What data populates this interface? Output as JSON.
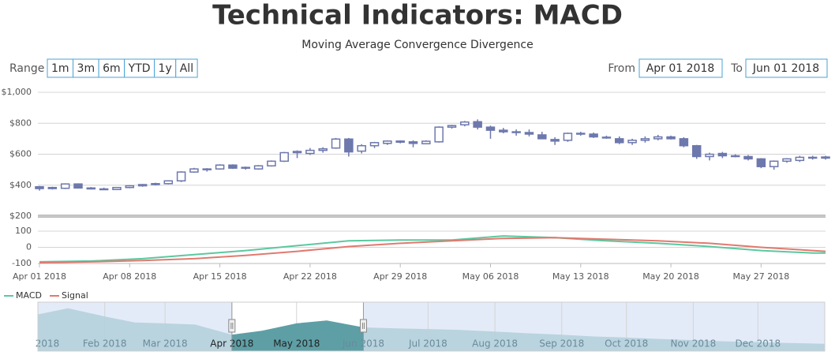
{
  "range_selector": {
    "label": "Range",
    "buttons": [
      "1m",
      "3m",
      "6m",
      "YTD",
      "1y",
      "All"
    ]
  },
  "date_range": {
    "from_label": "From",
    "from": "Apr 01 2018",
    "to_label": "To",
    "to": "Jun 01 2018"
  },
  "chart_data": [
    {
      "type": "candlestick",
      "title": "Technical Indicators: MACD",
      "subtitle": "Moving Average Convergence Divergence",
      "color": "#6d78ad",
      "grid": true,
      "xlim": [
        "2018-04-01",
        "2018-06-01"
      ],
      "ylim": [
        200,
        1000
      ],
      "yticks": [
        {
          "value": 200,
          "label": "$200"
        },
        {
          "value": 400,
          "label": "$400"
        },
        {
          "value": 600,
          "label": "$600"
        },
        {
          "value": 800,
          "label": "$800"
        },
        {
          "value": 1000,
          "label": "$1,000"
        }
      ],
      "x": [
        "2018-04-01",
        "2018-04-02",
        "2018-04-03",
        "2018-04-04",
        "2018-04-05",
        "2018-04-06",
        "2018-04-07",
        "2018-04-08",
        "2018-04-09",
        "2018-04-10",
        "2018-04-11",
        "2018-04-12",
        "2018-04-13",
        "2018-04-14",
        "2018-04-15",
        "2018-04-16",
        "2018-04-17",
        "2018-04-18",
        "2018-04-19",
        "2018-04-20",
        "2018-04-21",
        "2018-04-22",
        "2018-04-23",
        "2018-04-24",
        "2018-04-25",
        "2018-04-26",
        "2018-04-27",
        "2018-04-28",
        "2018-04-29",
        "2018-04-30",
        "2018-05-01",
        "2018-05-02",
        "2018-05-03",
        "2018-05-04",
        "2018-05-05",
        "2018-05-06",
        "2018-05-07",
        "2018-05-08",
        "2018-05-09",
        "2018-05-10",
        "2018-05-11",
        "2018-05-12",
        "2018-05-13",
        "2018-05-14",
        "2018-05-15",
        "2018-05-16",
        "2018-05-17",
        "2018-05-18",
        "2018-05-19",
        "2018-05-20",
        "2018-05-21",
        "2018-05-22",
        "2018-05-23",
        "2018-05-24",
        "2018-05-25",
        "2018-05-26",
        "2018-05-27",
        "2018-05-28",
        "2018-05-29",
        "2018-05-30",
        "2018-05-31",
        "2018-06-01"
      ],
      "open": [
        390,
        378,
        380,
        408,
        382,
        376,
        372,
        385,
        396,
        404,
        410,
        428,
        485,
        500,
        505,
        530,
        510,
        505,
        525,
        555,
        610,
        605,
        625,
        640,
        698,
        620,
        655,
        670,
        685,
        680,
        668,
        680,
        775,
        790,
        810,
        775,
        755,
        745,
        740,
        725,
        695,
        690,
        735,
        730,
        710,
        700,
        675,
        690,
        700,
        712,
        700,
        655,
        585,
        605,
        590,
        585,
        570,
        520,
        555,
        560,
        580,
        575
      ],
      "high": [
        395,
        390,
        412,
        412,
        388,
        384,
        388,
        400,
        408,
        416,
        432,
        490,
        512,
        510,
        535,
        535,
        520,
        530,
        560,
        615,
        625,
        640,
        645,
        705,
        705,
        665,
        680,
        690,
        690,
        690,
        690,
        780,
        790,
        815,
        825,
        785,
        770,
        760,
        760,
        745,
        710,
        740,
        745,
        740,
        720,
        715,
        700,
        715,
        725,
        720,
        710,
        660,
        610,
        615,
        600,
        595,
        575,
        560,
        575,
        590,
        590,
        590
      ],
      "low": [
        365,
        372,
        375,
        378,
        372,
        368,
        368,
        380,
        390,
        398,
        405,
        420,
        480,
        488,
        500,
        505,
        500,
        500,
        520,
        550,
        575,
        595,
        610,
        635,
        585,
        605,
        640,
        660,
        670,
        645,
        665,
        675,
        765,
        780,
        760,
        700,
        735,
        720,
        715,
        700,
        660,
        680,
        720,
        705,
        700,
        665,
        660,
        675,
        690,
        695,
        645,
        570,
        560,
        575,
        580,
        560,
        510,
        500,
        545,
        550,
        565,
        565
      ],
      "close": [
        378,
        385,
        408,
        382,
        376,
        372,
        385,
        396,
        404,
        410,
        428,
        485,
        505,
        505,
        530,
        510,
        515,
        525,
        555,
        610,
        618,
        625,
        635,
        698,
        615,
        655,
        675,
        685,
        678,
        670,
        684,
        775,
        785,
        808,
        775,
        755,
        745,
        740,
        730,
        700,
        685,
        735,
        730,
        712,
        705,
        675,
        690,
        700,
        712,
        700,
        655,
        585,
        600,
        590,
        585,
        570,
        520,
        555,
        570,
        580,
        575,
        582
      ]
    },
    {
      "type": "line",
      "grid": true,
      "legend": "bottom-left",
      "xlim": [
        "2018-04-01",
        "2018-06-01"
      ],
      "ylim": [
        -100,
        100
      ],
      "yticks": [
        -100,
        0,
        100
      ],
      "xticks": [
        {
          "value": "2018-04-01",
          "label": "Apr 01 2018"
        },
        {
          "value": "2018-04-08",
          "label": "Apr 08 2018"
        },
        {
          "value": "2018-04-15",
          "label": "Apr 15 2018"
        },
        {
          "value": "2018-04-22",
          "label": "Apr 22 2018"
        },
        {
          "value": "2018-04-29",
          "label": "Apr 29 2018"
        },
        {
          "value": "2018-05-06",
          "label": "May 06 2018"
        },
        {
          "value": "2018-05-13",
          "label": "May 13 2018"
        },
        {
          "value": "2018-05-20",
          "label": "May 20 2018"
        },
        {
          "value": "2018-05-27",
          "label": "May 27 2018"
        }
      ],
      "x": [
        "2018-04-01",
        "2018-04-05",
        "2018-04-09",
        "2018-04-13",
        "2018-04-17",
        "2018-04-21",
        "2018-04-25",
        "2018-04-29",
        "2018-05-03",
        "2018-05-07",
        "2018-05-11",
        "2018-05-15",
        "2018-05-19",
        "2018-05-23",
        "2018-05-27",
        "2018-05-31",
        "2018-06-01"
      ],
      "series": [
        {
          "name": "MACD",
          "color": "#5bc8a0",
          "values": [
            -90,
            -85,
            -70,
            -45,
            -20,
            10,
            40,
            45,
            45,
            70,
            60,
            40,
            25,
            5,
            -20,
            -35,
            -35
          ]
        },
        {
          "name": "Signal",
          "color": "#e07a6f",
          "values": [
            -95,
            -90,
            -82,
            -70,
            -50,
            -25,
            5,
            25,
            40,
            55,
            60,
            50,
            40,
            25,
            0,
            -20,
            -25
          ]
        }
      ]
    },
    {
      "type": "area",
      "color": "#b3d0da",
      "selected_color": "#5e9fa6",
      "xlim": [
        "2018-01-01",
        "2019-01-01"
      ],
      "ylim": [
        0,
        1200
      ],
      "xticks": [
        {
          "value": "2018-01-01",
          "label": "2018"
        },
        {
          "value": "2018-02-01",
          "label": "Feb 2018"
        },
        {
          "value": "2018-03-01",
          "label": "Mar 2018"
        },
        {
          "value": "2018-04-01",
          "label": "Apr 2018"
        },
        {
          "value": "2018-05-01",
          "label": "May 2018"
        },
        {
          "value": "2018-06-01",
          "label": "Jun 2018"
        },
        {
          "value": "2018-07-01",
          "label": "Jul 2018"
        },
        {
          "value": "2018-08-01",
          "label": "Aug 2018"
        },
        {
          "value": "2018-09-01",
          "label": "Sep 2018"
        },
        {
          "value": "2018-10-01",
          "label": "Oct 2018"
        },
        {
          "value": "2018-11-01",
          "label": "Nov 2018"
        },
        {
          "value": "2018-12-01",
          "label": "Dec 2018"
        }
      ],
      "x": [
        "2018-01-01",
        "2018-01-15",
        "2018-02-01",
        "2018-02-15",
        "2018-03-01",
        "2018-03-15",
        "2018-04-01",
        "2018-04-15",
        "2018-05-01",
        "2018-05-15",
        "2018-06-01",
        "2018-06-15",
        "2018-07-01",
        "2018-07-15",
        "2018-08-01",
        "2018-08-15",
        "2018-09-01",
        "2018-09-15",
        "2018-10-01",
        "2018-10-15",
        "2018-11-01",
        "2018-11-15",
        "2018-12-01",
        "2018-12-15",
        "2019-01-01"
      ],
      "values": [
        900,
        1050,
        850,
        700,
        680,
        650,
        400,
        500,
        680,
        750,
        580,
        560,
        540,
        520,
        480,
        440,
        400,
        360,
        330,
        300,
        270,
        240,
        220,
        200,
        180
      ]
    }
  ]
}
